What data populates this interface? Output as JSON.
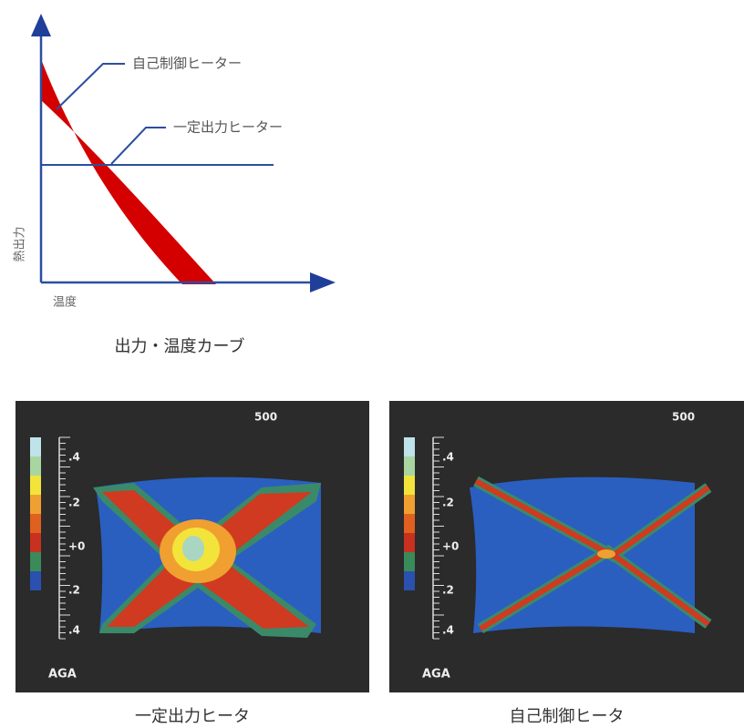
{
  "diagram": {
    "label_self": "自己制御ヒーター",
    "label_const": "一定出力ヒーター",
    "y_axis": "熱出力",
    "x_axis": "温度",
    "caption": "出力・温度カーブ"
  },
  "images": [
    {
      "scale_top": "500",
      "scale_labels": [
        ".4",
        ".2",
        "+0",
        ".2",
        ".4"
      ],
      "unit": "AGA",
      "caption": "一定出力ヒータ"
    },
    {
      "scale_top": "500",
      "scale_labels": [
        ".4",
        ".2",
        "+0",
        ".2",
        ".4"
      ],
      "unit": "AGA",
      "caption": "自己制御ヒータ"
    }
  ]
}
